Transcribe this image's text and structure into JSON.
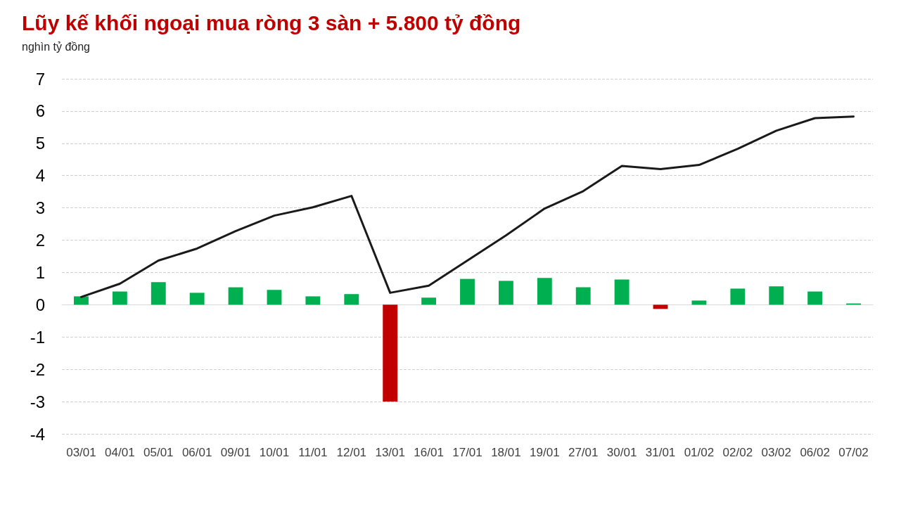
{
  "chart_data": {
    "type": "bar",
    "title": "Lũy kế khối ngoại mua ròng 3 sàn + 5.800 tỷ đồng",
    "subtitle": "nghìn tỷ đồng",
    "categories": [
      "03/01",
      "04/01",
      "05/01",
      "06/01",
      "09/01",
      "10/01",
      "11/01",
      "12/01",
      "13/01",
      "16/01",
      "17/01",
      "18/01",
      "19/01",
      "27/01",
      "30/01",
      "31/01",
      "01/02",
      "02/02",
      "03/02",
      "06/02",
      "07/02"
    ],
    "series": [
      {
        "colors": [
          "#00b050",
          "#00b050",
          "#00b050",
          "#00b050",
          "#00b050",
          "#00b050",
          "#00b050",
          "#00b050",
          "#c00000",
          "#00b050",
          "#00b050",
          "#00b050",
          "#00b050",
          "#00b050",
          "#00b050",
          "#c00000",
          "#00b050",
          "#00b050",
          "#00b050",
          "#00b050",
          "#00b050"
        ],
        "values": [
          0.26,
          0.41,
          0.7,
          0.37,
          0.54,
          0.46,
          0.26,
          0.33,
          -3.0,
          0.22,
          0.8,
          0.74,
          0.83,
          0.54,
          0.78,
          -0.13,
          0.13,
          0.5,
          0.57,
          0.41,
          0.04
        ]
      },
      {
        "type": "line",
        "color": "#1a1a1a",
        "values": [
          0.24,
          0.65,
          1.37,
          1.74,
          2.28,
          2.76,
          3.02,
          3.37,
          0.37,
          0.59,
          1.37,
          2.15,
          2.98,
          3.52,
          4.3,
          4.2,
          4.33,
          4.83,
          5.39,
          5.78,
          5.83
        ]
      }
    ],
    "ylim": [
      -4,
      7
    ],
    "yticks": [
      -4,
      -3,
      -2,
      -1,
      0,
      1,
      2,
      3,
      4,
      5,
      6,
      7
    ],
    "grid": "y",
    "marker": "none",
    "line_style": "solid"
  }
}
